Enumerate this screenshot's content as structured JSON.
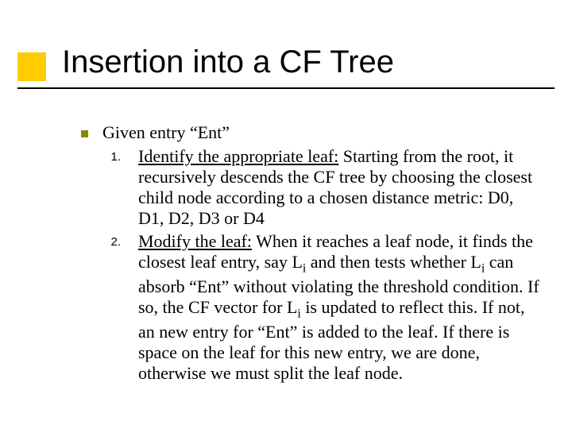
{
  "accent_color": "#ffcc00",
  "bullet_color": "#8a8a00",
  "rule_color": "#000000",
  "title": "Insertion into a CF Tree",
  "lead": "Given entry “Ent”",
  "items": [
    {
      "num": "1.",
      "underline": "Identify the appropriate leaf:",
      "rest": " Starting from the root, it recursively descends the CF tree by choosing the closest child node according to a chosen distance metric: D0, D1, D2, D3 or D4"
    },
    {
      "num": "2.",
      "underline": "Modify the leaf:",
      "rest_html": "  When it reaches a leaf node, it finds the closest leaf entry, say L<sub>i</sub> and then tests whether L<sub>i</sub> can absorb “Ent” without violating the threshold condition.  If so, the CF vector for L<sub>i</sub> is updated to reflect this.  If not, an new entry for “Ent” is added to the leaf.  If there is space on the leaf for this new entry, we are done, otherwise we must split the leaf node."
    }
  ]
}
